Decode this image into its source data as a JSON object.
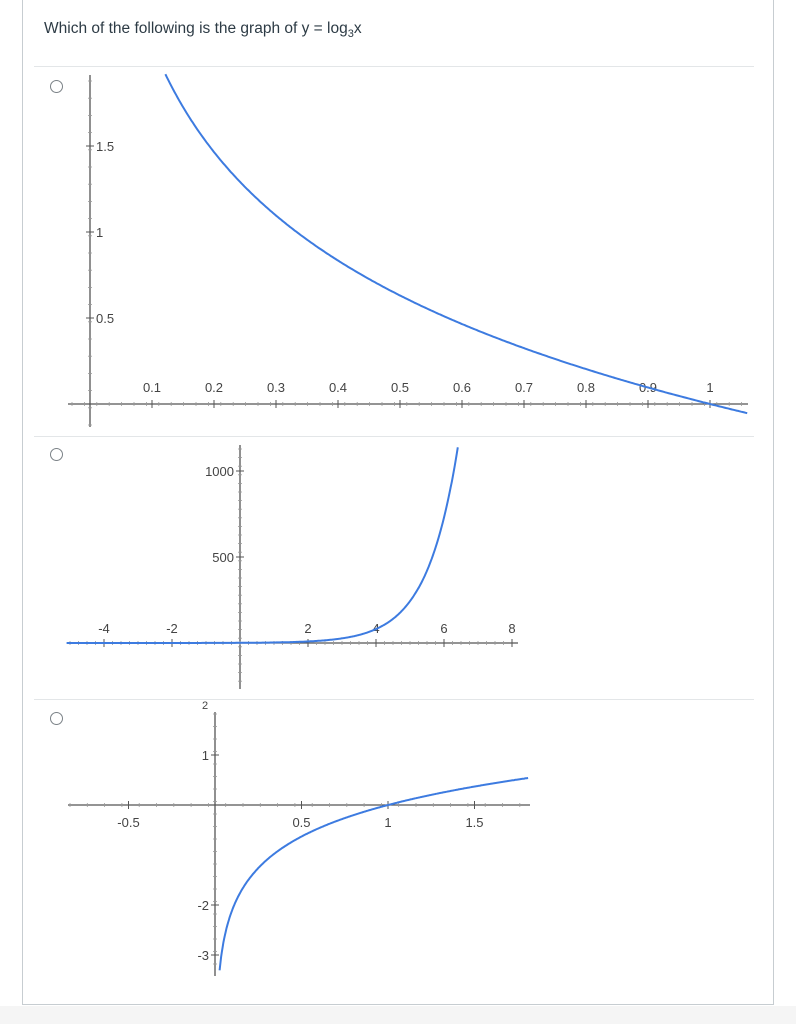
{
  "question": {
    "prefix": "Which of the following is the graph of y = log",
    "base": "3",
    "suffix": "x"
  },
  "colors": {
    "curve": "#3d7be0",
    "axis": "#555555",
    "divider": "#e3e6e8",
    "text": "#2d3b45"
  },
  "options": [
    {
      "id": "option-a",
      "selected": false,
      "chart_data": {
        "type": "line",
        "function": "y = -log3(x)",
        "xlim": [
          0,
          1.02
        ],
        "ylim": [
          -0.1,
          1.85
        ],
        "x_ticks": [
          "0.1",
          "0.2",
          "0.3",
          "0.4",
          "0.5",
          "0.6",
          "0.7",
          "0.8",
          "0.9",
          "1"
        ],
        "y_ticks": [
          "0.5",
          "1",
          "1.5"
        ]
      }
    },
    {
      "id": "option-b",
      "selected": false,
      "chart_data": {
        "type": "line",
        "function": "y = 3^x",
        "xlim": [
          -5,
          10
        ],
        "ylim": [
          -300,
          1200
        ],
        "x_ticks": [
          "-4",
          "-2",
          "2",
          "4",
          "6",
          "8"
        ],
        "y_ticks": [
          "500",
          "1000"
        ]
      }
    },
    {
      "id": "option-c",
      "selected": false,
      "chart_data": {
        "type": "line",
        "function": "y = log3(x)",
        "xlim": [
          -0.8,
          1.8
        ],
        "ylim": [
          -3.3,
          1.8
        ],
        "x_ticks": [
          "-0.5",
          "0.5",
          "1",
          "1.5"
        ],
        "y_ticks": [
          "1",
          "-2",
          "-3"
        ],
        "y_ticks_cut": [
          "2"
        ]
      }
    }
  ]
}
